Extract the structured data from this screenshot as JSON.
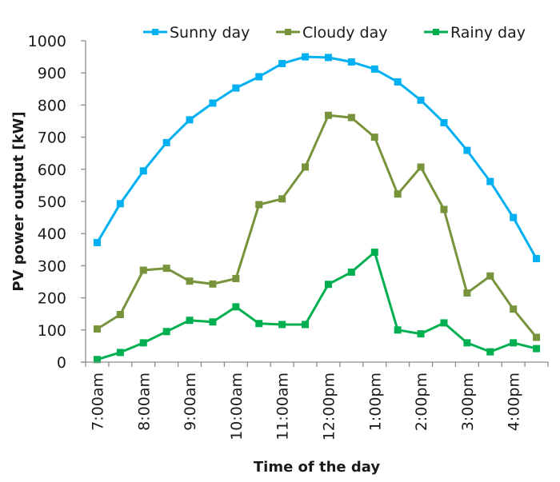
{
  "chart_data": {
    "type": "line",
    "title": "",
    "xlabel": "Time of the day",
    "ylabel": "PV power output [kW]",
    "ylim": [
      0,
      1000
    ],
    "yticks": [
      0,
      100,
      200,
      300,
      400,
      500,
      600,
      700,
      800,
      900,
      1000
    ],
    "grid": false,
    "legend_position": "top",
    "x": [
      "7:00am",
      "7:30am",
      "8:00am",
      "8:30am",
      "9:00am",
      "9:30am",
      "10:00am",
      "10:30am",
      "11:00am",
      "11:30am",
      "12:00pm",
      "12:30pm",
      "1:00pm",
      "1:30pm",
      "2:00pm",
      "2:30pm",
      "3:00pm",
      "3:30pm",
      "4:00pm",
      "4:30pm"
    ],
    "xtick_labels": [
      "7:00am",
      "8:00am",
      "9:00am",
      "10:00am",
      "11:00am",
      "12:00pm",
      "1:00pm",
      "2:00pm",
      "3:00pm",
      "4:00pm"
    ],
    "series": [
      {
        "name": "Sunny day",
        "color": "#00b0f0",
        "marker": "square",
        "values": [
          372,
          493,
          595,
          683,
          754,
          806,
          853,
          888,
          929,
          950,
          948,
          934,
          912,
          872,
          815,
          745,
          659,
          562,
          450,
          322
        ]
      },
      {
        "name": "Cloudy day",
        "color": "#77933c",
        "marker": "square",
        "values": [
          103,
          148,
          286,
          292,
          252,
          243,
          260,
          490,
          508,
          607,
          768,
          761,
          700,
          523,
          607,
          475,
          215,
          268,
          165,
          77
        ]
      },
      {
        "name": "Rainy day",
        "color": "#00b050",
        "marker": "square",
        "values": [
          8,
          30,
          60,
          95,
          130,
          125,
          172,
          120,
          117,
          117,
          242,
          280,
          342,
          100,
          88,
          122,
          60,
          32,
          60,
          42
        ]
      }
    ]
  }
}
